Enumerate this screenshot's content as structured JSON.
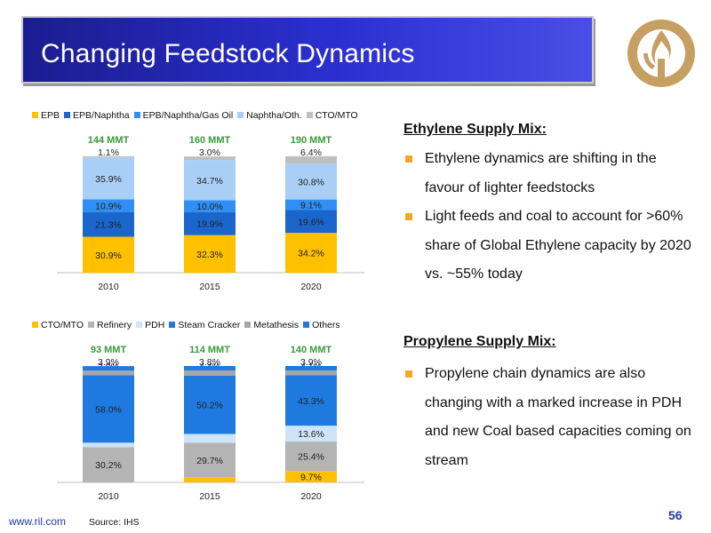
{
  "slide": {
    "title": "Changing Feedstock Dynamics",
    "footer_url": "www.ril.com",
    "source": "Source: IHS",
    "page_number": "56"
  },
  "ethylene_panel": {
    "heading": "Ethylene Supply Mix:",
    "bullets": [
      "Ethylene dynamics are shifting in the favour of lighter feedstocks",
      "Light feeds and coal to account for >60% share of Global Ethylene capacity by 2020 vs. ~55% today"
    ]
  },
  "propylene_panel": {
    "heading": "Propylene Supply Mix:",
    "bullets": [
      "Propylene chain dynamics are also changing with a marked increase in PDH and new Coal based capacities coming on stream"
    ]
  },
  "colors": {
    "title_bar": "#2b2fd0",
    "bullet_marker": "#f5a623",
    "logo": "#c6a063",
    "capacity_label": "#3a9a3a"
  },
  "chart_data": [
    {
      "type": "bar",
      "stacked": true,
      "categories": [
        "2010",
        "2015",
        "2020"
      ],
      "totals": [
        "144 MMT",
        "160 MMT",
        "190 MMT"
      ],
      "series": [
        {
          "name": "EPB",
          "color": "#ffc000",
          "values": [
            30.9,
            32.3,
            34.2
          ],
          "labels": [
            "30.9%",
            "32.3%",
            "34.2%"
          ]
        },
        {
          "name": "EPB/Naphtha",
          "color": "#1a66cc",
          "values": [
            21.3,
            19.9,
            19.6
          ],
          "labels": [
            "21.3%",
            "19.9%",
            "19.6%"
          ]
        },
        {
          "name": "EPB/Naphtha/Gas Oil",
          "color": "#2f8ff5",
          "values": [
            10.9,
            10.0,
            9.1
          ],
          "labels": [
            "10.9%",
            "10.0%",
            "9.1%"
          ]
        },
        {
          "name": "Naphtha/Oth.",
          "color": "#a9cff7",
          "values": [
            35.9,
            34.7,
            30.8
          ],
          "labels": [
            "35.9%",
            "34.7%",
            "30.8%"
          ]
        },
        {
          "name": "CTO/MTO",
          "color": "#bfbfbf",
          "values": [
            1.1,
            3.0,
            6.4
          ],
          "labels": [
            "1.1%",
            "3.0%",
            "6.4%"
          ]
        }
      ],
      "ylim": [
        0,
        100
      ],
      "legend_position": "top",
      "grid": false
    },
    {
      "type": "bar",
      "stacked": true,
      "categories": [
        "2010",
        "2015",
        "2020"
      ],
      "totals": [
        "93 MMT",
        "114 MMT",
        "140 MMT"
      ],
      "series": [
        {
          "name": "CTO/MTO",
          "color": "#ffc000",
          "values": [
            0,
            4.4,
            9.7
          ],
          "labels": [
            "",
            "4.4%",
            "9.7%"
          ]
        },
        {
          "name": "Refinery",
          "color": "#b4b4b4",
          "values": [
            30.2,
            29.7,
            25.4
          ],
          "labels": [
            "30.2%",
            "29.7%",
            "25.4%"
          ]
        },
        {
          "name": "PDH",
          "color": "#cfe4f8",
          "values": [
            3.9,
            7.5,
            13.6
          ],
          "labels": [
            "3.9%",
            "7.5%",
            "13.6%"
          ]
        },
        {
          "name": "Steam Cracker",
          "color": "#1f7ae0",
          "values": [
            58.0,
            50.2,
            43.3
          ],
          "labels": [
            "58.0%",
            "50.2%",
            "43.3%"
          ]
        },
        {
          "name": "Metathesis",
          "color": "#a6a6a6",
          "values": [
            3.9,
            4.4,
            4.1
          ],
          "labels": [
            "3.9%",
            "4.4%",
            "4.1%"
          ]
        },
        {
          "name": "Others",
          "color": "#1f7ae0",
          "values": [
            3.9,
            3.8,
            3.9
          ],
          "labels": [
            "3.9%",
            "3.8%",
            "3.9%"
          ]
        }
      ],
      "ylim": [
        0,
        100
      ],
      "legend_position": "top",
      "grid": false
    }
  ]
}
